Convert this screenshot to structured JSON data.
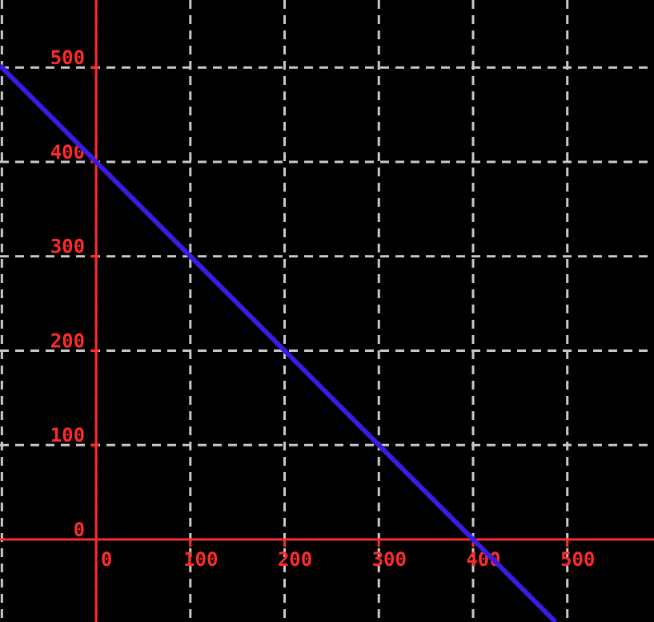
{
  "chart_data": {
    "type": "line",
    "title": "",
    "xlabel": "",
    "ylabel": "",
    "xlim": [
      -102,
      592
    ],
    "ylim": [
      -87.5,
      571.5
    ],
    "x_ticks": {
      "values": [
        0,
        100,
        200,
        300,
        400,
        500
      ],
      "labels": [
        "0",
        "100",
        "200",
        "300",
        "400",
        "500"
      ]
    },
    "y_ticks": {
      "values": [
        0,
        100,
        200,
        300,
        400,
        500
      ],
      "labels": [
        "0",
        "100",
        "200",
        "300",
        "400",
        "500"
      ]
    },
    "grid": {
      "visible": true,
      "style": "dashed",
      "x_values": [
        -100,
        0,
        100,
        200,
        300,
        400,
        500
      ],
      "y_values": [
        0,
        100,
        200,
        300,
        400,
        500
      ]
    },
    "axes": {
      "x_axis_at_y": 0,
      "y_axis_at_x": 0
    },
    "series": [
      {
        "name": "y = 400 - x",
        "type": "line",
        "color": "#3a1ce0",
        "stroke_width": 6,
        "y_intercept": 400,
        "x_intercept": 400,
        "slope": -1,
        "points": [
          [
            -102,
            502
          ],
          [
            487.5,
            -87.5
          ]
        ]
      }
    ],
    "legend": {
      "visible": false
    },
    "colors": {
      "background": "#000000",
      "axis": "#ff2b2b",
      "tick_label": "#ff2b2b",
      "grid": "#c9c9c9"
    }
  }
}
